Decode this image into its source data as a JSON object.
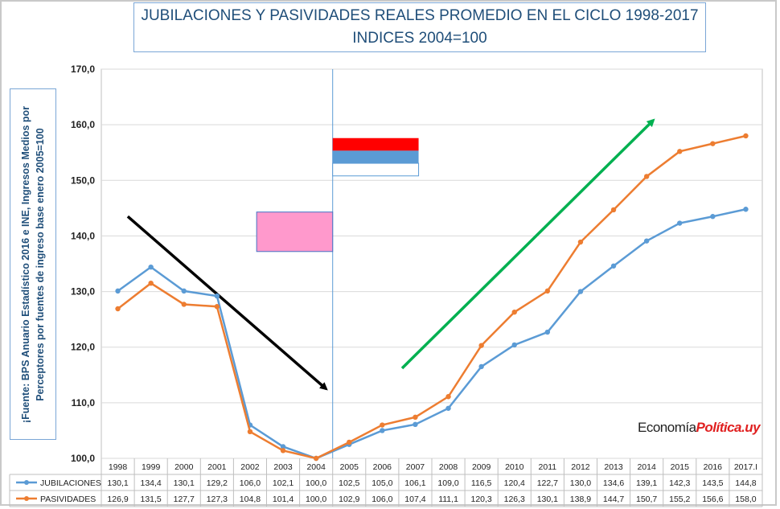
{
  "title": {
    "line1": "JUBILACIONES Y PASIVIDADES REALES PROMEDIO EN EL CICLO 1998-2017",
    "line2": "INDICES 2004=100"
  },
  "source": {
    "line1": "¡Fuente: BPS Anuario Estadístico 2016 e INE, Ingresos Medios por",
    "line2": "Perceptores por fuentes de ingreso base enero 2005=100"
  },
  "watermark": {
    "part1": "Economía",
    "part2": "Política.uy"
  },
  "colors": {
    "jubilaciones": "#5b9bd5",
    "pasividades": "#ed7d31",
    "grid": "#d9d9d9",
    "axis": "#bfbfbf",
    "pink_box": "#ff99cc",
    "flag_red": "#ff0000",
    "flag_blue": "#5b9bd5",
    "arrow_down": "#000000",
    "arrow_up": "#00b050"
  },
  "chart_data": {
    "type": "line",
    "title": "JUBILACIONES Y PASIVIDADES REALES PROMEDIO EN EL CICLO 1998-2017 INDICES 2004=100",
    "categories": [
      "1998",
      "1999",
      "2000",
      "2001",
      "2002",
      "2003",
      "2004",
      "2005",
      "2006",
      "2007",
      "2008",
      "2009",
      "2010",
      "2011",
      "2012",
      "2013",
      "2014",
      "2015",
      "2016",
      "2017.I"
    ],
    "ylim": [
      100,
      170
    ],
    "yticks": [
      "100,0",
      "110,0",
      "120,0",
      "130,0",
      "140,0",
      "150,0",
      "160,0",
      "170,0"
    ],
    "ytick_values": [
      100,
      110,
      120,
      130,
      140,
      150,
      160,
      170
    ],
    "series": [
      {
        "name": "JUBILACIONES",
        "values": [
          130.1,
          134.4,
          130.1,
          129.2,
          106.0,
          102.1,
          100.0,
          102.5,
          105.0,
          106.1,
          109.0,
          116.5,
          120.4,
          122.7,
          130.0,
          134.6,
          139.1,
          142.3,
          143.5,
          144.8
        ],
        "labels": [
          "130,1",
          "134,4",
          "130,1",
          "129,2",
          "106,0",
          "102,1",
          "100,0",
          "102,5",
          "105,0",
          "106,1",
          "109,0",
          "116,5",
          "120,4",
          "122,7",
          "130,0",
          "134,6",
          "139,1",
          "142,3",
          "143,5",
          "144,8"
        ]
      },
      {
        "name": "PASIVIDADES",
        "values": [
          126.9,
          131.5,
          127.7,
          127.3,
          104.8,
          101.4,
          100.0,
          102.9,
          106.0,
          107.4,
          111.1,
          120.3,
          126.3,
          130.1,
          138.9,
          144.7,
          150.7,
          155.2,
          156.6,
          158.0
        ],
        "labels": [
          "126,9",
          "131,5",
          "127,7",
          "127,3",
          "104,8",
          "101,4",
          "100,0",
          "102,9",
          "106,0",
          "107,4",
          "111,1",
          "120,3",
          "126,3",
          "130,1",
          "138,9",
          "144,7",
          "150,7",
          "155,2",
          "156,6",
          "158,0"
        ]
      }
    ],
    "vertical_marker_category": "2005",
    "annotations": [
      {
        "kind": "arrow",
        "name": "downtrend-arrow",
        "color": "black",
        "from": {
          "x": 0.8,
          "y": 143.5
        },
        "to": {
          "x": 6.8,
          "y": 112.5
        }
      },
      {
        "kind": "arrow",
        "name": "uptrend-arrow",
        "color": "green",
        "from": {
          "x": 9.1,
          "y": 116.2
        },
        "to": {
          "x": 16.7,
          "y": 160.8
        }
      },
      {
        "kind": "rect",
        "name": "pink-box",
        "x0": 4.7,
        "x1": 7.0,
        "y0": 137.2,
        "y1": 144.3
      },
      {
        "kind": "flag",
        "name": "flag-box",
        "x0": 7.0,
        "x1": 9.6,
        "y0": 150.8,
        "y1": 157.6
      }
    ]
  }
}
